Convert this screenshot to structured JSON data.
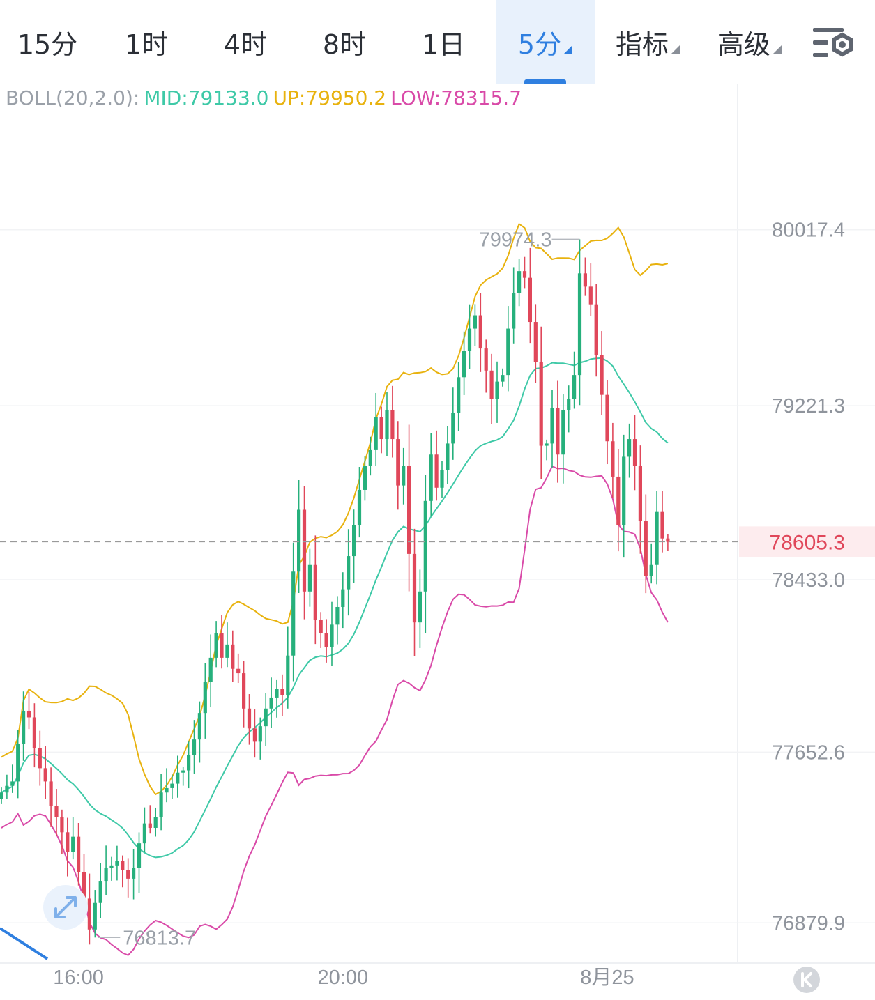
{
  "tabs": [
    {
      "label": "15分",
      "active": false,
      "dropdown": false
    },
    {
      "label": "1时",
      "active": false,
      "dropdown": false
    },
    {
      "label": "4时",
      "active": false,
      "dropdown": false
    },
    {
      "label": "8时",
      "active": false,
      "dropdown": false
    },
    {
      "label": "1日",
      "active": false,
      "dropdown": false
    },
    {
      "label": "5分",
      "active": true,
      "dropdown": true
    },
    {
      "label": "指标",
      "active": false,
      "dropdown": true
    },
    {
      "label": "高级",
      "active": false,
      "dropdown": true
    }
  ],
  "settings_icon": "chart-settings-icon",
  "expand_icon": "expand-arrows-icon",
  "scroll_icon": "scroll-to-latest-icon",
  "legend": {
    "name": "BOLL(20,2.0):",
    "mid": "MID:79133.0",
    "up": "UP:79950.2",
    "low": "LOW:78315.7"
  },
  "colors": {
    "up_candle": "#26b07c",
    "down_candle": "#e0475a",
    "mid_band": "#3ec9a7",
    "upper_band": "#e8b20e",
    "lower_band": "#d94aa8",
    "price_line": "#9a9a9a",
    "price_tag": "#e0475a",
    "accent": "#2f7fe0"
  },
  "chart_data": {
    "type": "candlestick",
    "y_ticks": [
      80017.4,
      79221.3,
      78433.0,
      77652.6,
      76879.9
    ],
    "y_tick_labels": [
      "80017.4",
      "79221.3",
      "78433.0",
      "77652.6",
      "76879.9"
    ],
    "ylim": [
      76720,
      80250
    ],
    "x_labels": [
      "16:00",
      "20:00",
      "8月25"
    ],
    "current_price": 78605.3,
    "current_price_label": "78605.3",
    "max_marker": {
      "value": 79974.3,
      "label": "79974.3"
    },
    "min_marker": {
      "value": 76813.7,
      "label": "76813.7"
    },
    "bollinger": {
      "period": 20,
      "std": 2.0,
      "mid": 79133.0,
      "up": 79950.2,
      "low": 78315.7
    },
    "first_candle_time": "14:50",
    "interval_minutes": 5,
    "closes": [
      77470,
      77500,
      77520,
      77690,
      77840,
      77810,
      77670,
      77580,
      77520,
      77410,
      77360,
      77290,
      77200,
      77270,
      77110,
      76990,
      76850,
      76970,
      77070,
      77130,
      77140,
      77160,
      77120,
      77080,
      77130,
      77240,
      77330,
      77310,
      77360,
      77470,
      77490,
      77510,
      77560,
      77570,
      77640,
      77710,
      77830,
      77970,
      78080,
      78190,
      78080,
      78140,
      78030,
      78010,
      77850,
      77760,
      77700,
      77770,
      77850,
      77900,
      77940,
      77910,
      78090,
      78470,
      78750,
      78380,
      78500,
      78250,
      78190,
      78130,
      78230,
      78310,
      78390,
      78540,
      78680,
      78840,
      78950,
      79020,
      79170,
      79070,
      79200,
      79070,
      78860,
      78950,
      78550,
      78240,
      78380,
      78790,
      79000,
      78850,
      78930,
      79050,
      79190,
      79350,
      79470,
      79570,
      79630,
      79480,
      79380,
      79250,
      79330,
      79360,
      79570,
      79730,
      79830,
      79800,
      79600,
      79420,
      79040,
      79050,
      79210,
      79000,
      79200,
      79250,
      79360,
      79820,
      79760,
      79680,
      79450,
      79270,
      79060,
      78900,
      78680,
      78990,
      79070,
      78950,
      78700,
      78450,
      78500,
      78740,
      78620,
      78605
    ]
  }
}
